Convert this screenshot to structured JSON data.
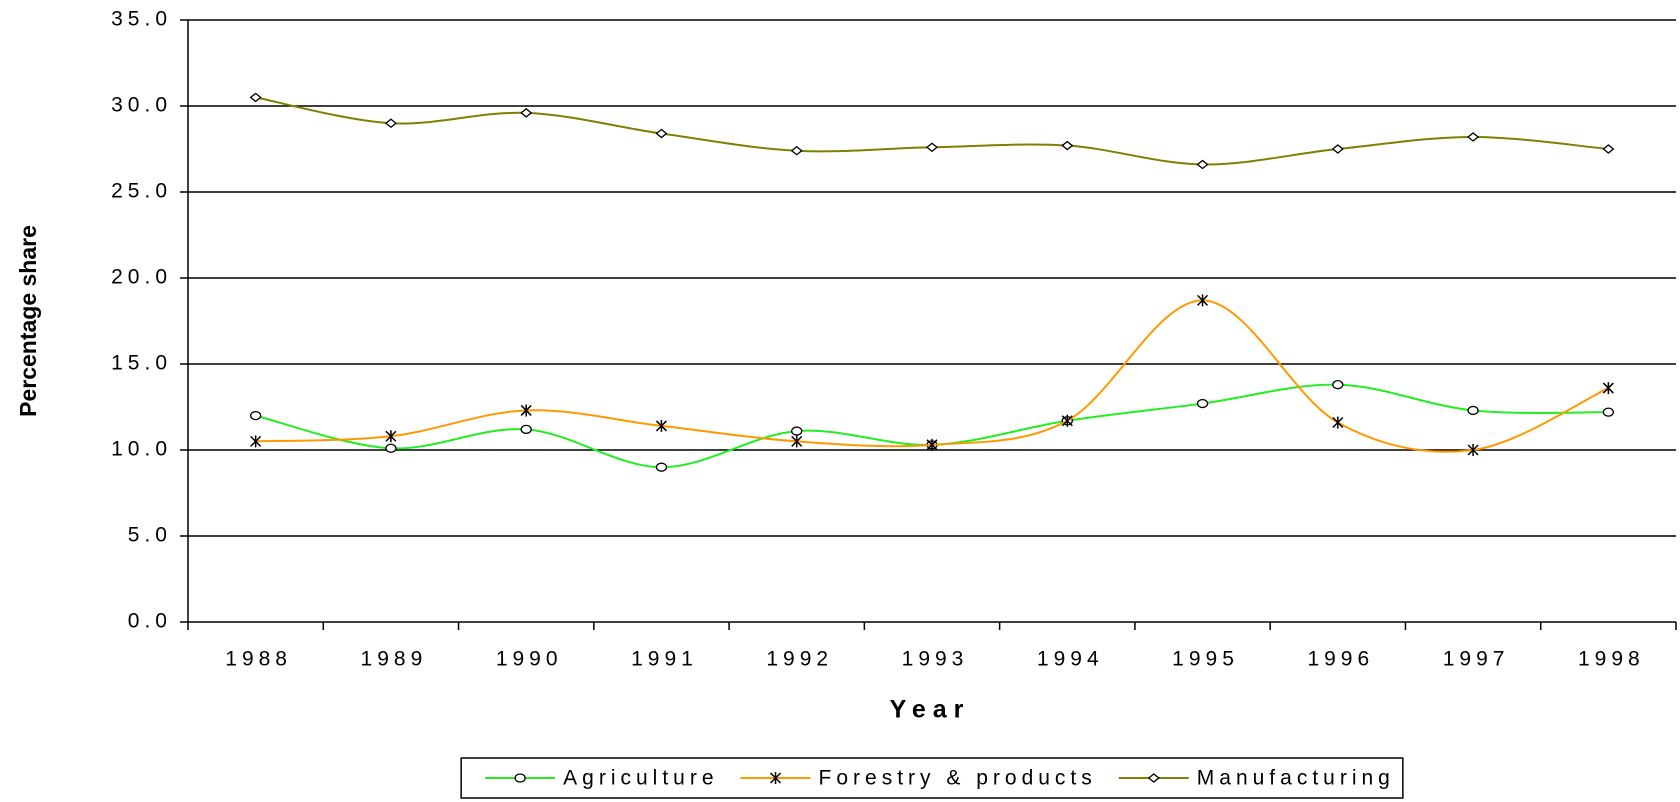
{
  "chart_data": {
    "type": "line",
    "x_label": "Year",
    "y_label": "Percentage share",
    "categories": [
      "1988",
      "1989",
      "1990",
      "1991",
      "1992",
      "1993",
      "1994",
      "1995",
      "1996",
      "1997",
      "1998"
    ],
    "series": [
      {
        "name": "Agriculture",
        "color": "#22ee22",
        "marker": "circle",
        "values": [
          12.0,
          10.1,
          11.2,
          9.0,
          11.1,
          10.3,
          11.7,
          12.7,
          13.8,
          12.3,
          12.2
        ]
      },
      {
        "name": "Forestry & products",
        "color": "#ff9900",
        "marker": "asterisk",
        "values": [
          10.5,
          10.8,
          12.3,
          11.4,
          10.5,
          10.3,
          11.7,
          18.7,
          11.6,
          10.0,
          13.6
        ]
      },
      {
        "name": "Manufacturing",
        "color": "#808000",
        "marker": "diamond",
        "values": [
          30.5,
          29.0,
          29.6,
          28.4,
          27.4,
          27.6,
          27.7,
          26.6,
          27.5,
          28.2,
          27.5
        ]
      }
    ],
    "ylim": [
      0,
      35
    ],
    "yticks": [
      {
        "value": 0,
        "label": "0.0"
      },
      {
        "value": 5,
        "label": "5.0"
      },
      {
        "value": 10,
        "label": "10.0"
      },
      {
        "value": 15,
        "label": "15.0"
      },
      {
        "value": 20,
        "label": "20.0"
      },
      {
        "value": 25,
        "label": "25.0"
      },
      {
        "value": 30,
        "label": "30.0"
      },
      {
        "value": 35,
        "label": "35.0"
      }
    ],
    "grid": true,
    "smooth": true,
    "legend": "bottom"
  }
}
